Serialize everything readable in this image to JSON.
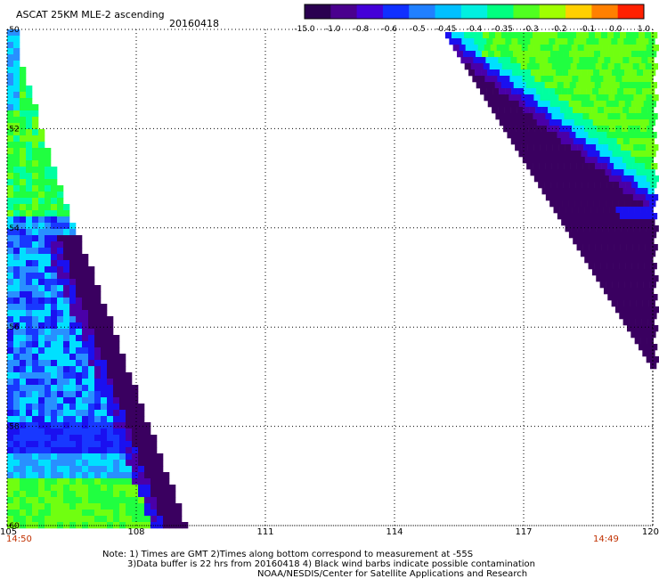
{
  "header": {
    "title": "ASCAT 25KM MLE-2 ascending",
    "date": "20160418"
  },
  "colorbar": {
    "labels": [
      "-15.0",
      "-1.0",
      "-0.8",
      "-0.6",
      "-0.5",
      "-0.45",
      "-0.4",
      "-0.35",
      "-0.3",
      "-0.2",
      "-0.1",
      "0.0",
      "1.0"
    ],
    "colors": [
      "#2a0050",
      "#4a008e",
      "#4400d8",
      "#1030ff",
      "#2080ff",
      "#00c0ff",
      "#00f0e0",
      "#00ff80",
      "#50ff20",
      "#a0ff00",
      "#ffd000",
      "#ff8000",
      "#ff2000"
    ]
  },
  "map": {
    "x_ticks": [
      "105",
      "108",
      "111",
      "114",
      "117",
      "120"
    ],
    "y_ticks": [
      "-50",
      "-52",
      "-54",
      "-56",
      "-58",
      "-60"
    ],
    "time_start": "14:50",
    "time_end": "14:49"
  },
  "swath_colors": {
    "deep_purple": "#3a0060",
    "violet": "#4a00a8",
    "blue": "#1a10f0",
    "royal_blue": "#1838ff",
    "sky_blue": "#2890ff",
    "cyan": "#00e0ff",
    "aqua_green": "#00ffa0",
    "green": "#20ff40",
    "lime": "#70ff10",
    "yellow_green": "#a0ff00"
  },
  "footer": {
    "note_line1": "Note: 1) Times are GMT 2)Times along bottom correspond to measurement at -55S",
    "note_line2": "3)Data buffer is 22 hrs from 20160418 4) Black wind barbs indicate possible contamination",
    "credit": "NOAA/NESDIS/Center for Satellite Applications and Research"
  }
}
